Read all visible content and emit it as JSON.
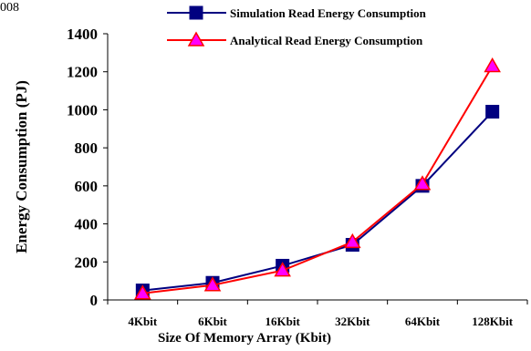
{
  "corner_text": "008",
  "chart_data": {
    "type": "line",
    "categories": [
      "4Kbit",
      "6Kbit",
      "16Kbit",
      "32Kbit",
      "64Kbit",
      "128Kbit"
    ],
    "series": [
      {
        "name": "Simulation Read Energy Consumption",
        "values": [
          50,
          90,
          180,
          290,
          600,
          990
        ],
        "color": "#000080",
        "marker": "square"
      },
      {
        "name": "Analytical Read Energy Consumption",
        "values": [
          35,
          78,
          155,
          305,
          610,
          1230
        ],
        "color": "#ff0000",
        "marker": "triangle",
        "marker_fill": "#ff00ff"
      }
    ],
    "xlabel": "Size Of Memory Array (Kbit)",
    "ylabel": "Energy Consumption (PJ)",
    "ylim": [
      0,
      1400
    ],
    "yticks": [
      0,
      200,
      400,
      600,
      800,
      1000,
      1200,
      1400
    ],
    "grid": false,
    "legend": "top-right"
  }
}
